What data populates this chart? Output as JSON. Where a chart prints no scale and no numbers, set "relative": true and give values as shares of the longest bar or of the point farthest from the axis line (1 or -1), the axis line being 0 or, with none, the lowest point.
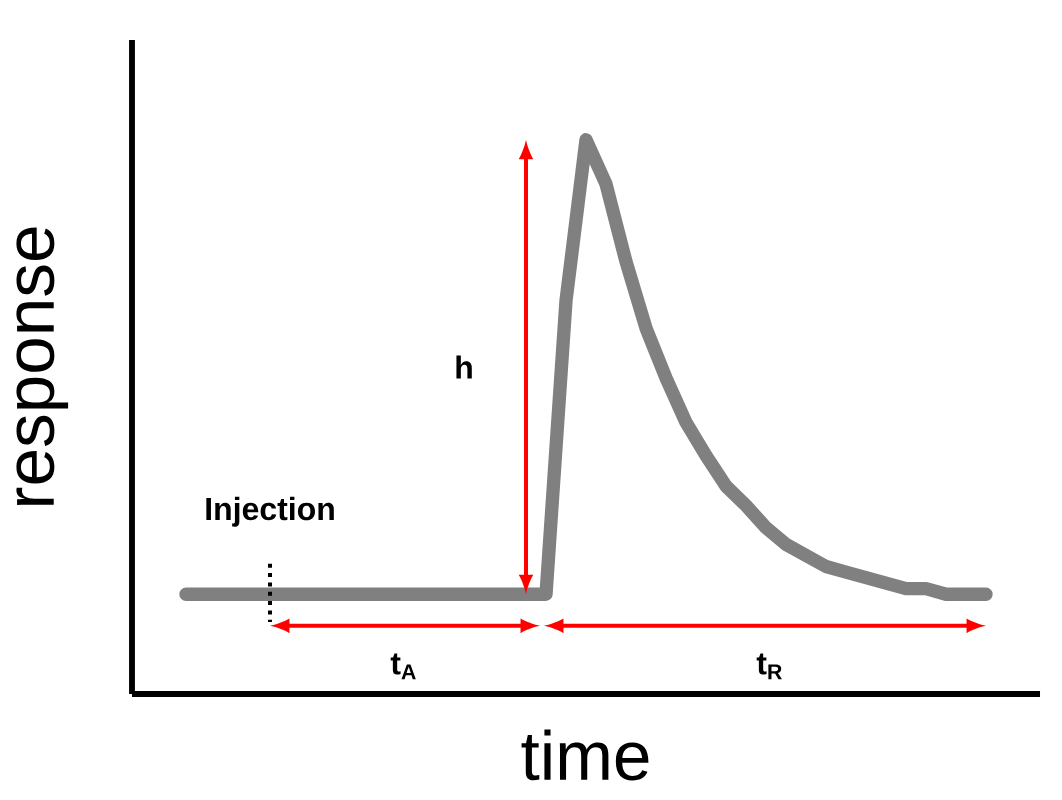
{
  "chart_data": {
    "type": "line",
    "relative": true,
    "xlabel": "time",
    "ylabel": "response",
    "color": "#808080",
    "categories": [
      null,
      null,
      null,
      null,
      null,
      null,
      null,
      null,
      null,
      null,
      null,
      null,
      null,
      null,
      null,
      null,
      null,
      null,
      null,
      null,
      null,
      null,
      null,
      null,
      null,
      null,
      null,
      null,
      null,
      null,
      null,
      null,
      null,
      null,
      null,
      null,
      null,
      null,
      null,
      null,
      null
    ],
    "values": [
      0.18,
      0.18,
      0.18,
      0.18,
      0.18,
      0.18,
      0.18,
      0.18,
      0.18,
      0.18,
      0.18,
      0.18,
      0.18,
      0.18,
      0.18,
      0.18,
      0.18,
      0.18,
      0.18,
      0.71,
      1,
      0.92,
      0.78,
      0.66,
      0.57,
      0.49,
      0.43,
      0.375,
      0.34,
      0.3,
      0.27,
      0.25,
      0.23,
      0.22,
      0.21,
      0.2,
      0.19,
      0.19,
      0.18,
      0.18,
      0.18
    ],
    "annotations": [
      "Injection",
      "h",
      "t$_{A}$",
      "t$_{R}$"
    ]
  }
}
